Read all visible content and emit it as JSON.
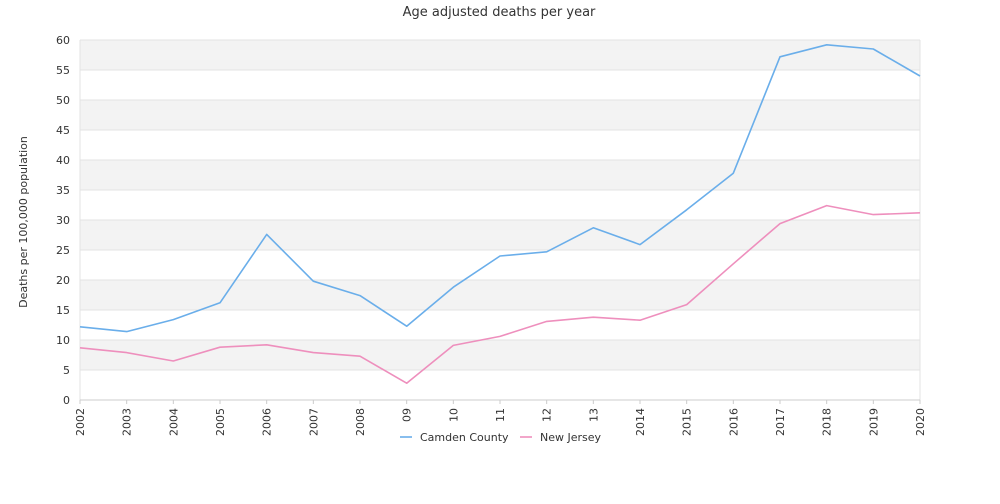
{
  "chart_data": {
    "type": "line",
    "title": "Age adjusted deaths per year",
    "xlabel": "",
    "ylabel": "Deaths per 100,000 population",
    "categories": [
      "2002",
      "2003",
      "2004",
      "2005",
      "2006",
      "2007",
      "2008",
      "09",
      "10",
      "11",
      "12",
      "13",
      "2014",
      "2015",
      "2016",
      "2017",
      "2018",
      "2019",
      "2020"
    ],
    "ylim": [
      0,
      60
    ],
    "yticks": [
      0,
      5,
      10,
      15,
      20,
      25,
      30,
      35,
      40,
      45,
      50,
      55,
      60
    ],
    "grid": "horizontal bands",
    "legend_position": "bottom",
    "series": [
      {
        "name": "Camden County",
        "color": "#6aaeea",
        "values": [
          12.2,
          11.4,
          13.4,
          16.2,
          27.6,
          19.8,
          17.4,
          12.3,
          18.8,
          24.0,
          24.7,
          28.7,
          25.9,
          31.7,
          37.8,
          57.2,
          59.2,
          58.5,
          54.0
        ]
      },
      {
        "name": "New Jersey",
        "color": "#ee8fbd",
        "values": [
          8.7,
          7.9,
          6.5,
          8.8,
          9.2,
          7.9,
          7.3,
          2.8,
          9.1,
          10.6,
          13.1,
          13.8,
          13.3,
          15.9,
          22.7,
          29.4,
          32.4,
          30.9,
          31.2
        ]
      }
    ]
  }
}
